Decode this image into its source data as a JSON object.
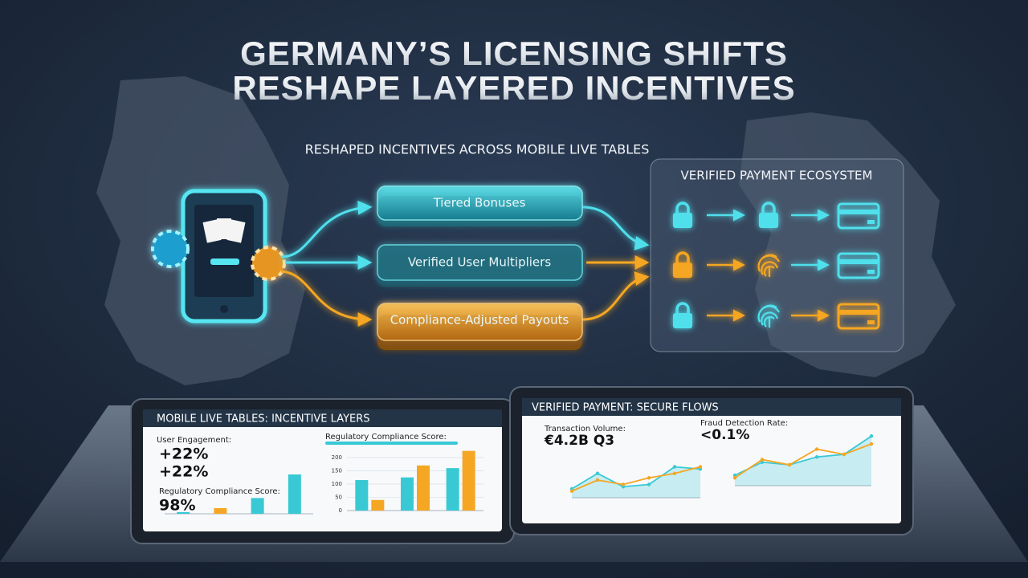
{
  "title": [
    "GERMANY’S LICENSING SHIFTS",
    "RESHAPE LAYERED INCENTIVES"
  ],
  "subtitle": "RESHAPED INCENTIVES ACROSS MOBILE LIVE TABLES",
  "incentive_layers": [
    "Tiered Bonuses",
    "Verified User Multipliers",
    "Compliance-Adjusted Payouts"
  ],
  "payment_ecosystem": {
    "title": "VERIFIED PAYMENT ECOSYSTEM"
  },
  "tablet_incentives": {
    "title": "MOBILE LIVE TABLES: INCENTIVE LAYERS",
    "metric_1_label": "User Engagement:",
    "metric_1_values": [
      "+22%",
      "+22%"
    ],
    "metric_2_label": "Regulatory Compliance Score:",
    "metric_2_value": "98%",
    "mini_chart": {
      "type": "bar",
      "values": [
        3,
        10,
        28,
        70
      ],
      "colors": [
        "#38c9d4",
        "#f5a623",
        "#38c9d4",
        "#38c9d4"
      ],
      "ylim": [
        0,
        100
      ]
    },
    "bar_chart": {
      "type": "bar",
      "title": "Regulatory Compliance Score:",
      "ylim": [
        0,
        230
      ],
      "yticks": [
        0,
        50,
        100,
        150,
        200
      ],
      "series": [
        {
          "color": "#38c9d4",
          "values": [
            115,
            125,
            160
          ]
        },
        {
          "color": "#f5a623",
          "values": [
            40,
            170,
            225
          ]
        }
      ]
    }
  },
  "tablet_payments": {
    "title": "VERIFIED PAYMENT: SECURE FLOWS",
    "metric_1_label": "Transaction Volume:",
    "metric_1_value": "€4.2B Q3",
    "metric_2_label": "Fraud Detection Rate:",
    "metric_2_value": "<0.1%",
    "line_charts": [
      {
        "type": "line",
        "ylim": [
          0,
          100
        ],
        "series": [
          {
            "color": "#38c9d4",
            "values": [
              20,
              55,
              25,
              30,
              70,
              65
            ]
          },
          {
            "color": "#f5a623",
            "values": [
              15,
              40,
              30,
              45,
              55,
              70
            ]
          }
        ]
      },
      {
        "type": "line",
        "ylim": [
          0,
          100
        ],
        "series": [
          {
            "color": "#38c9d4",
            "values": [
              20,
              45,
              40,
              55,
              60,
              95
            ]
          },
          {
            "color": "#f5a623",
            "values": [
              15,
              50,
              40,
              70,
              60,
              80
            ]
          }
        ]
      }
    ]
  }
}
